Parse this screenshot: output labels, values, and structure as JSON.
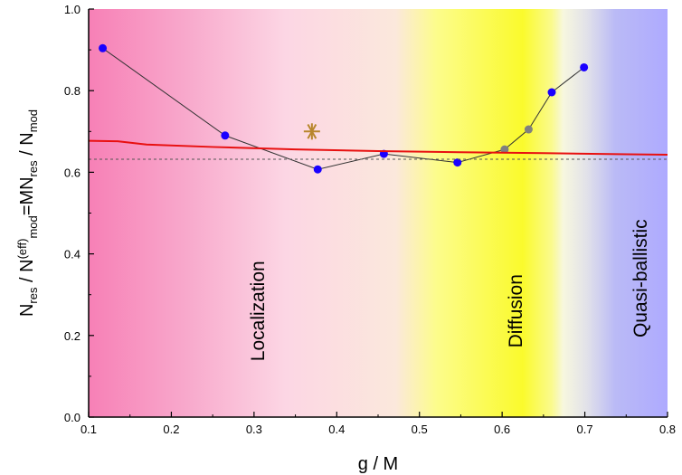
{
  "chart_data": {
    "type": "line",
    "xlabel": "g / M",
    "ylabel": {
      "parts": [
        {
          "t": "N",
          "s": "n"
        },
        {
          "t": "res",
          "s": "sub"
        },
        {
          "t": " / N",
          "s": "n"
        },
        {
          "t": "(eff)",
          "s": "sup"
        },
        {
          "t": "mod",
          "s": "sub"
        },
        {
          "t": "=MN",
          "s": "n"
        },
        {
          "t": "res",
          "s": "sub"
        },
        {
          "t": " / N",
          "s": "n"
        },
        {
          "t": "mod",
          "s": "sub"
        }
      ]
    },
    "xlim": [
      0.1,
      0.8
    ],
    "ylim": [
      0.0,
      1.0
    ],
    "xticks": [
      0.1,
      0.2,
      0.3,
      0.4,
      0.5,
      0.6,
      0.7,
      0.8
    ],
    "xtick_labels": [
      "0.1",
      "0.2",
      "0.3",
      "0.4",
      "0.5",
      "0.6",
      "0.7",
      "0.8"
    ],
    "yticks": [
      0.0,
      0.2,
      0.4,
      0.6,
      0.8,
      1.0
    ],
    "ytick_labels": [
      "0.0",
      "0.2",
      "0.4",
      "0.6",
      "0.8",
      "1.0"
    ],
    "grid": false,
    "regions": [
      {
        "label": "Localization",
        "x": 0.305,
        "y": 0.26
      },
      {
        "label": "Diffusion",
        "x": 0.617,
        "y": 0.26
      },
      {
        "label": "Quasi-ballistic",
        "x": 0.768,
        "y": 0.34
      }
    ],
    "series": [
      {
        "kind": "markers-line",
        "color": "#1a00ff",
        "line_color": "#333333",
        "x": [
          0.117,
          0.265,
          0.377,
          0.457,
          0.546,
          0.603,
          0.632,
          0.66,
          0.699
        ],
        "y": [
          0.904,
          0.69,
          0.607,
          0.645,
          0.624,
          0.656,
          0.705,
          0.796,
          0.857
        ],
        "marker_colors": [
          "#1a00ff",
          "#1a00ff",
          "#1a00ff",
          "#1a00ff",
          "#1a00ff",
          "#808080",
          "#808080",
          "#1a00ff",
          "#1a00ff"
        ]
      },
      {
        "kind": "line",
        "color": "#e81010",
        "x": [
          0.1,
          0.135,
          0.17,
          0.25,
          0.35,
          0.45,
          0.55,
          0.65,
          0.75,
          0.8
        ],
        "y": [
          0.677,
          0.676,
          0.668,
          0.662,
          0.656,
          0.652,
          0.649,
          0.647,
          0.644,
          0.643
        ]
      },
      {
        "kind": "dashed",
        "color": "#555555",
        "x": [
          0.1,
          0.8
        ],
        "y": [
          0.632,
          0.632
        ]
      },
      {
        "kind": "star",
        "color": "#b8862c",
        "x": [
          0.37
        ],
        "y": [
          0.7
        ]
      }
    ]
  }
}
